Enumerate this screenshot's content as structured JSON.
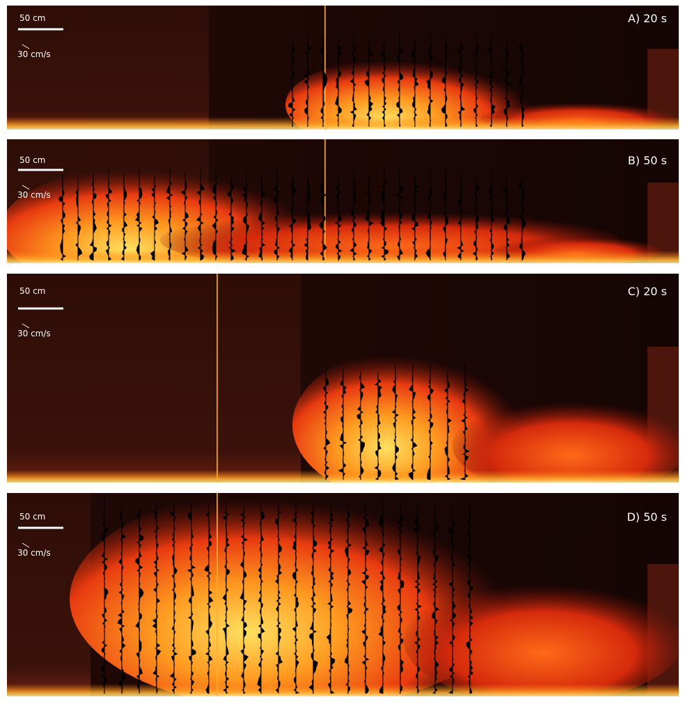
{
  "panels": [
    {
      "label": "A) 20 s",
      "scale_length": "50 cm",
      "scale_velocity": "30 cm/s"
    },
    {
      "label": "B) 50 s",
      "scale_length": "50 cm",
      "scale_velocity": "30 cm/s"
    },
    {
      "label": "C) 20 s",
      "scale_length": "50 cm",
      "scale_velocity": "30 cm/s"
    },
    {
      "label": "D) 50 s",
      "scale_length": "50 cm",
      "scale_velocity": "30 cm/s"
    }
  ]
}
